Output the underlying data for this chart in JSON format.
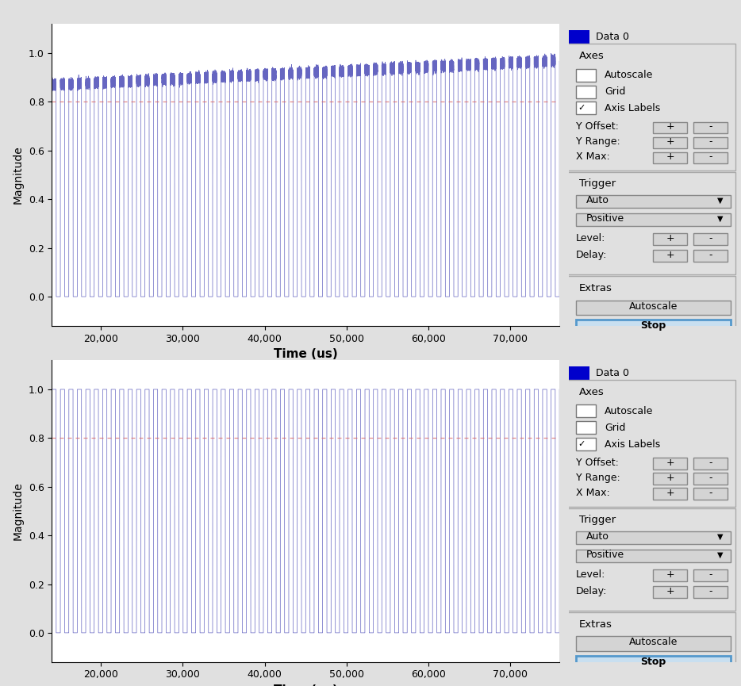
{
  "plot1": {
    "ylabel": "Magnitude",
    "xlabel": "Time (us)",
    "xlim": [
      14000,
      76000
    ],
    "ylim": [
      -0.12,
      1.12
    ],
    "yticks": [
      0,
      0.2,
      0.4,
      0.6,
      0.8,
      1.0
    ],
    "xticks": [
      20000,
      30000,
      40000,
      50000,
      60000,
      70000
    ],
    "trigger_level": 0.8,
    "signal_color": "#5555bb",
    "trigger_color": "#dd6666",
    "num_pulses": 60,
    "envelope_rise": true
  },
  "plot2": {
    "ylabel": "Magnitude",
    "xlabel": "Time (us)",
    "xlim": [
      14000,
      76000
    ],
    "ylim": [
      -0.12,
      1.12
    ],
    "yticks": [
      0,
      0.2,
      0.4,
      0.6,
      0.8,
      1.0
    ],
    "xticks": [
      20000,
      30000,
      40000,
      50000,
      60000,
      70000
    ],
    "trigger_level": 0.8,
    "signal_color": "#5555bb",
    "trigger_color": "#dd6666",
    "num_pulses": 60,
    "envelope_rise": false
  },
  "legend_label": "Data 0",
  "legend_color": "#0000cc",
  "panel_bg": "#e0e0e0",
  "plot_bg": "#ffffff",
  "axes_section": {
    "title": "Axes",
    "items": [
      "Autoscale",
      "Grid",
      "Axis Labels"
    ],
    "checked": [
      false,
      false,
      true
    ]
  },
  "trigger_section": {
    "title": "Trigger",
    "dropdown1": "Auto",
    "dropdown2": "Positive",
    "level_label": "Level:",
    "delay_label": "Delay:"
  },
  "extras_section": {
    "title": "Extras",
    "btn1": "Autoscale",
    "btn2": "Stop"
  }
}
